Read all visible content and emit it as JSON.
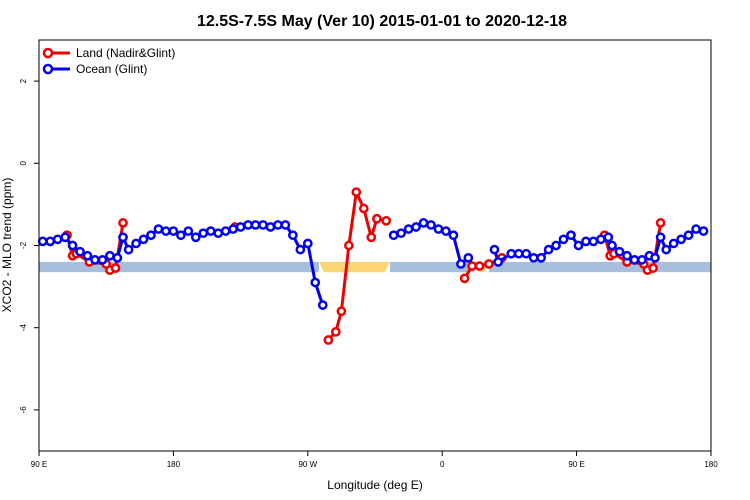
{
  "chart_data": {
    "type": "line",
    "title": "12.5S-7.5S May (Ver 10)   2015-01-01 to 2020-12-18",
    "xlabel": "Longitude (deg E)",
    "ylabel": "XCO2 - MLO trend (ppm)",
    "xlim": [
      90,
      450
    ],
    "ylim": [
      -7,
      3
    ],
    "x_ticks": [
      {
        "value": 90,
        "label": "90 E"
      },
      {
        "value": 162,
        "label": "180"
      },
      {
        "value": 234,
        "label": "90 W"
      },
      {
        "value": 306,
        "label": "0"
      },
      {
        "value": 378,
        "label": "90 E"
      },
      {
        "value": 450,
        "label": "180"
      }
    ],
    "y_ticks": [
      {
        "value": 2,
        "label": "2"
      },
      {
        "value": 0,
        "label": "0"
      },
      {
        "value": -2,
        "label": "-2"
      },
      {
        "value": -4,
        "label": "-4"
      },
      {
        "value": -6,
        "label": "-6"
      }
    ],
    "grid": false,
    "legend_position": "top-left",
    "band": {
      "y_range": [
        -2.65,
        -2.4
      ],
      "segments": [
        {
          "x_range": [
            90,
            240
          ],
          "color": "#a7bfdc"
        },
        {
          "x_range": [
            240,
            278
          ],
          "color": "#fcd675"
        },
        {
          "x_range": [
            278,
            323
          ],
          "color": "#a7bfdc"
        },
        {
          "x_range": [
            323,
            331
          ],
          "color": "#fcd675"
        },
        {
          "x_range": [
            331,
            450
          ],
          "color": "#a7bfdc"
        }
      ]
    },
    "series": [
      {
        "name": "Land (Nadir&Glint)",
        "color": "#ee0000",
        "segments": [
          [
            [
              105,
              -1.75
            ],
            [
              108,
              -2.25
            ],
            [
              110,
              -2.2
            ],
            [
              117,
              -2.4
            ],
            [
              126,
              -2.45
            ],
            [
              128,
              -2.6
            ],
            [
              131,
              -2.55
            ],
            [
              135,
              -1.45
            ]
          ],
          [
            [
              195,
              -1.55
            ]
          ],
          [
            [
              245,
              -4.3
            ],
            [
              249,
              -4.1
            ],
            [
              252,
              -3.6
            ],
            [
              256,
              -2.0
            ],
            [
              260,
              -0.7
            ],
            [
              264,
              -1.1
            ],
            [
              268,
              -1.8
            ],
            [
              271,
              -1.35
            ],
            [
              276,
              -1.4
            ]
          ],
          [
            [
              318,
              -2.8
            ],
            [
              322,
              -2.5
            ],
            [
              326,
              -2.5
            ],
            [
              331,
              -2.45
            ],
            [
              338,
              -2.3
            ]
          ],
          [
            [
              393,
              -1.75
            ],
            [
              396,
              -2.25
            ],
            [
              398,
              -2.2
            ],
            [
              405,
              -2.4
            ],
            [
              414,
              -2.45
            ],
            [
              416,
              -2.6
            ],
            [
              419,
              -2.55
            ],
            [
              423,
              -1.45
            ]
          ]
        ]
      },
      {
        "name": "Ocean (Glint)",
        "color": "#0000ee",
        "segments": [
          [
            [
              92,
              -1.9
            ],
            [
              96,
              -1.9
            ],
            [
              100,
              -1.85
            ],
            [
              104,
              -1.8
            ],
            [
              108,
              -2.0
            ],
            [
              112,
              -2.15
            ],
            [
              116,
              -2.25
            ],
            [
              120,
              -2.35
            ],
            [
              124,
              -2.35
            ],
            [
              128,
              -2.25
            ],
            [
              132,
              -2.3
            ],
            [
              135,
              -1.8
            ],
            [
              138,
              -2.1
            ],
            [
              142,
              -1.95
            ],
            [
              146,
              -1.85
            ],
            [
              150,
              -1.75
            ],
            [
              154,
              -1.6
            ],
            [
              158,
              -1.65
            ],
            [
              162,
              -1.65
            ],
            [
              166,
              -1.75
            ],
            [
              170,
              -1.65
            ],
            [
              174,
              -1.8
            ],
            [
              178,
              -1.7
            ],
            [
              182,
              -1.65
            ],
            [
              186,
              -1.7
            ],
            [
              190,
              -1.65
            ],
            [
              194,
              -1.6
            ],
            [
              198,
              -1.55
            ],
            [
              202,
              -1.5
            ],
            [
              206,
              -1.5
            ],
            [
              210,
              -1.5
            ],
            [
              214,
              -1.55
            ],
            [
              218,
              -1.5
            ],
            [
              222,
              -1.5
            ],
            [
              226,
              -1.75
            ],
            [
              230,
              -2.1
            ],
            [
              234,
              -1.95
            ],
            [
              238,
              -2.9
            ],
            [
              242,
              -3.45
            ]
          ],
          [
            [
              280,
              -1.75
            ],
            [
              284,
              -1.7
            ],
            [
              288,
              -1.6
            ],
            [
              292,
              -1.55
            ],
            [
              296,
              -1.45
            ],
            [
              300,
              -1.5
            ],
            [
              304,
              -1.6
            ],
            [
              308,
              -1.65
            ],
            [
              312,
              -1.75
            ],
            [
              316,
              -2.45
            ],
            [
              320,
              -2.3
            ]
          ],
          [
            [
              334,
              -2.1
            ],
            [
              336,
              -2.4
            ],
            [
              343,
              -2.2
            ],
            [
              347,
              -2.2
            ],
            [
              351,
              -2.2
            ],
            [
              355,
              -2.3
            ],
            [
              359,
              -2.3
            ],
            [
              363,
              -2.1
            ],
            [
              367,
              -2.0
            ],
            [
              371,
              -1.85
            ],
            [
              375,
              -1.75
            ],
            [
              379,
              -2.0
            ],
            [
              383,
              -1.9
            ],
            [
              387,
              -1.9
            ],
            [
              391,
              -1.85
            ],
            [
              395,
              -1.8
            ],
            [
              397,
              -2.0
            ],
            [
              401,
              -2.15
            ],
            [
              405,
              -2.25
            ],
            [
              409,
              -2.35
            ],
            [
              413,
              -2.35
            ],
            [
              417,
              -2.25
            ],
            [
              420,
              -2.3
            ],
            [
              423,
              -1.8
            ],
            [
              426,
              -2.1
            ],
            [
              430,
              -1.95
            ],
            [
              434,
              -1.85
            ],
            [
              438,
              -1.75
            ],
            [
              442,
              -1.6
            ],
            [
              446,
              -1.65
            ]
          ]
        ]
      }
    ]
  }
}
